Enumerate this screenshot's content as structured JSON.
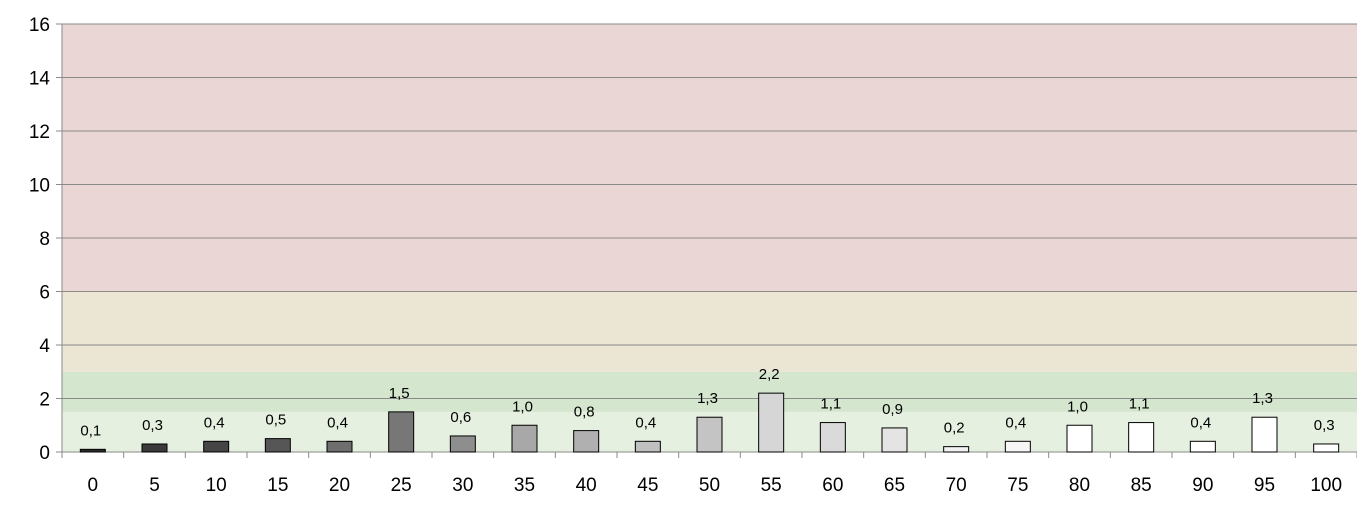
{
  "chart_data": {
    "type": "bar",
    "categories": [
      "0",
      "5",
      "10",
      "15",
      "20",
      "25",
      "30",
      "35",
      "40",
      "45",
      "50",
      "55",
      "60",
      "65",
      "70",
      "75",
      "80",
      "85",
      "90",
      "95",
      "100"
    ],
    "values": [
      0.1,
      0.3,
      0.4,
      0.5,
      0.4,
      1.5,
      0.6,
      1.0,
      0.8,
      0.4,
      1.3,
      2.2,
      1.1,
      0.9,
      0.2,
      0.4,
      1.0,
      1.1,
      0.4,
      1.3,
      0.3
    ],
    "data_labels": [
      "0,1",
      "0,3",
      "0,4",
      "0,5",
      "0,4",
      "1,5",
      "0,6",
      "1,0",
      "0,8",
      "0,4",
      "1,3",
      "2,2",
      "1,1",
      "0,9",
      "0,2",
      "0,4",
      "1,0",
      "1,1",
      "0,4",
      "1,3",
      "0,3"
    ],
    "bar_colors": [
      "#2d2d2d",
      "#3a3a3a",
      "#454545",
      "#565656",
      "#6e6e6e",
      "#777777",
      "#8e8e8e",
      "#a8a8a8",
      "#b0b0b0",
      "#c0c0c0",
      "#c4c4c4",
      "#d6d6d6",
      "#dadada",
      "#e4e4e4",
      "#f2f2f2",
      "#f6f6f6",
      "#ffffff",
      "#ffffff",
      "#ffffff",
      "#ffffff",
      "#ffffff"
    ],
    "ylim": [
      0,
      16
    ],
    "yticks": [
      "0",
      "2",
      "4",
      "6",
      "8",
      "10",
      "12",
      "14",
      "16"
    ],
    "ytick_values": [
      0,
      2,
      4,
      6,
      8,
      10,
      12,
      14,
      16
    ],
    "grid": true,
    "title": "",
    "xlabel": "",
    "ylabel": "",
    "background_bands": [
      {
        "from": 0,
        "to": 1.5,
        "color": "#e6f0e1"
      },
      {
        "from": 1.5,
        "to": 3,
        "color": "#d4e6cd"
      },
      {
        "from": 3,
        "to": 6,
        "color": "#ebe6d3"
      },
      {
        "from": 6,
        "to": 16,
        "color": "#ebd6d6"
      }
    ]
  }
}
